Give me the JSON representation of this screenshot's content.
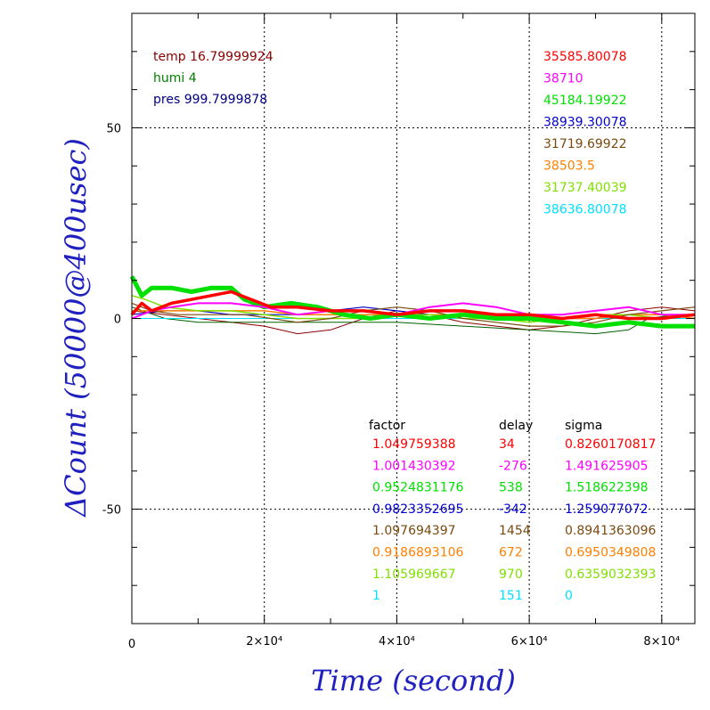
{
  "chart_data": {
    "type": "line",
    "title": "",
    "xlabel": "Time (second)",
    "ylabel": "ΔCount (50000@400usec)",
    "xlim": [
      0,
      85000
    ],
    "ylim": [
      -80,
      80
    ],
    "x_ticks": [
      {
        "value": 0,
        "label": "0"
      },
      {
        "value": 20000,
        "label": "2×10⁴"
      },
      {
        "value": 40000,
        "label": "4×10⁴"
      },
      {
        "value": 60000,
        "label": "6×10⁴"
      },
      {
        "value": 80000,
        "label": "8×10⁴"
      }
    ],
    "y_ticks": [
      {
        "value": 50,
        "label": "50"
      },
      {
        "value": 0,
        "label": "0"
      },
      {
        "value": -50,
        "label": "-50"
      }
    ],
    "grid": true,
    "env_labels": [
      {
        "text": "temp 16.79999924",
        "color": "#8b0000"
      },
      {
        "text": "humi 4",
        "color": "#008000"
      },
      {
        "text": "pres 999.7999878",
        "color": "#000080"
      }
    ],
    "means_header": "",
    "table_headers": {
      "factor": "factor",
      "delay": "delay",
      "sigma": "sigma"
    },
    "series": [
      {
        "mean": "35585.80078",
        "factor": "1.049759388",
        "delay": "34",
        "sigma": "0.8260170817",
        "color": "#ff0000",
        "width": 3.5,
        "points": [
          [
            0,
            1
          ],
          [
            1500,
            4
          ],
          [
            3000,
            2
          ],
          [
            6000,
            4
          ],
          [
            9000,
            5
          ],
          [
            12000,
            6
          ],
          [
            15000,
            7
          ],
          [
            18000,
            5
          ],
          [
            21000,
            3
          ],
          [
            25000,
            3
          ],
          [
            30000,
            2
          ],
          [
            35000,
            2
          ],
          [
            40000,
            1
          ],
          [
            45000,
            2
          ],
          [
            50000,
            2
          ],
          [
            55000,
            1
          ],
          [
            60000,
            1
          ],
          [
            65000,
            0
          ],
          [
            70000,
            1
          ],
          [
            75000,
            0
          ],
          [
            80000,
            0
          ],
          [
            85000,
            1
          ]
        ]
      },
      {
        "mean": "38710",
        "factor": "1.001430392",
        "delay": "-276",
        "sigma": "1.491625905",
        "color": "#ff00ff",
        "width": 2,
        "points": [
          [
            0,
            0
          ],
          [
            3000,
            2
          ],
          [
            6000,
            3
          ],
          [
            10000,
            4
          ],
          [
            15000,
            4
          ],
          [
            20000,
            3
          ],
          [
            25000,
            1
          ],
          [
            30000,
            2
          ],
          [
            35000,
            2
          ],
          [
            40000,
            1
          ],
          [
            45000,
            3
          ],
          [
            50000,
            4
          ],
          [
            55000,
            3
          ],
          [
            60000,
            1
          ],
          [
            65000,
            1
          ],
          [
            70000,
            2
          ],
          [
            75000,
            3
          ],
          [
            80000,
            1
          ],
          [
            85000,
            1
          ]
        ]
      },
      {
        "mean": "45184.19922",
        "factor": "0.9524831176",
        "delay": "538",
        "sigma": "1.518622398",
        "color": "#00e000",
        "width": 5,
        "points": [
          [
            0,
            11
          ],
          [
            1500,
            6
          ],
          [
            3000,
            8
          ],
          [
            6000,
            8
          ],
          [
            9000,
            7
          ],
          [
            12000,
            8
          ],
          [
            15000,
            8
          ],
          [
            17000,
            5
          ],
          [
            20000,
            3
          ],
          [
            24000,
            4
          ],
          [
            28000,
            3
          ],
          [
            32000,
            1
          ],
          [
            36000,
            0
          ],
          [
            40000,
            1
          ],
          [
            45000,
            0
          ],
          [
            50000,
            1
          ],
          [
            55000,
            0
          ],
          [
            60000,
            0
          ],
          [
            65000,
            -1
          ],
          [
            70000,
            -2
          ],
          [
            75000,
            -1
          ],
          [
            80000,
            -2
          ],
          [
            85000,
            -2
          ]
        ]
      },
      {
        "mean": "38939.30078",
        "factor": "0.9823352695",
        "delay": "-342",
        "sigma": "1.259077072",
        "color": "#0000cc",
        "width": 1.2,
        "points": [
          [
            0,
            1
          ],
          [
            5000,
            2
          ],
          [
            10000,
            2
          ],
          [
            15000,
            1
          ],
          [
            20000,
            1
          ],
          [
            25000,
            1
          ],
          [
            30000,
            2
          ],
          [
            35000,
            3
          ],
          [
            40000,
            2
          ],
          [
            45000,
            1
          ],
          [
            50000,
            1
          ],
          [
            55000,
            1
          ],
          [
            60000,
            1
          ],
          [
            65000,
            0
          ],
          [
            70000,
            0
          ],
          [
            75000,
            1
          ],
          [
            80000,
            1
          ],
          [
            85000,
            1
          ]
        ]
      },
      {
        "mean": "31719.69922",
        "factor": "1.097694397",
        "delay": "1454",
        "sigma": "0.8941363096",
        "color": "#7a4a10",
        "width": 1.2,
        "points": [
          [
            0,
            4
          ],
          [
            3000,
            2
          ],
          [
            7000,
            1
          ],
          [
            12000,
            1
          ],
          [
            17000,
            1
          ],
          [
            21000,
            0
          ],
          [
            25000,
            -1
          ],
          [
            30000,
            0
          ],
          [
            35000,
            2
          ],
          [
            40000,
            3
          ],
          [
            45000,
            2
          ],
          [
            50000,
            0
          ],
          [
            55000,
            -1
          ],
          [
            60000,
            -2
          ],
          [
            65000,
            -2
          ],
          [
            70000,
            -1
          ],
          [
            75000,
            1
          ],
          [
            80000,
            2
          ],
          [
            85000,
            3
          ]
        ]
      },
      {
        "mean": "38503.5",
        "factor": "0.9186893106",
        "delay": "672",
        "sigma": "0.6950349808",
        "color": "#ff8000",
        "width": 1.5,
        "points": [
          [
            0,
            2
          ],
          [
            5000,
            2
          ],
          [
            10000,
            2
          ],
          [
            15000,
            2
          ],
          [
            20000,
            2
          ],
          [
            25000,
            1
          ],
          [
            30000,
            1
          ],
          [
            35000,
            1
          ],
          [
            40000,
            1
          ],
          [
            45000,
            1
          ],
          [
            50000,
            1
          ],
          [
            55000,
            1
          ],
          [
            60000,
            0
          ],
          [
            65000,
            0
          ],
          [
            70000,
            0
          ],
          [
            75000,
            1
          ],
          [
            80000,
            1
          ],
          [
            85000,
            0
          ]
        ]
      },
      {
        "mean": "31737.40039",
        "factor": "1.105969667",
        "delay": "970",
        "sigma": "0.6359032393",
        "color": "#80e000",
        "width": 1.5,
        "points": [
          [
            0,
            6
          ],
          [
            2000,
            5
          ],
          [
            5000,
            3
          ],
          [
            10000,
            2
          ],
          [
            15000,
            2
          ],
          [
            20000,
            1
          ],
          [
            25000,
            0
          ],
          [
            30000,
            0
          ],
          [
            35000,
            0
          ],
          [
            40000,
            1
          ],
          [
            45000,
            1
          ],
          [
            50000,
            0
          ],
          [
            55000,
            0
          ],
          [
            60000,
            -1
          ],
          [
            65000,
            0
          ],
          [
            70000,
            1
          ],
          [
            75000,
            1
          ],
          [
            80000,
            0
          ],
          [
            85000,
            1
          ]
        ]
      },
      {
        "mean": "38636.80078",
        "factor": "1",
        "delay": "151",
        "sigma": "0",
        "color": "#00e0ff",
        "width": 1,
        "points": [
          [
            0,
            0
          ],
          [
            85000,
            0
          ]
        ]
      }
    ],
    "env_curves": [
      {
        "color": "#8b0000",
        "points": [
          [
            0,
            2
          ],
          [
            10000,
            0
          ],
          [
            20000,
            -2
          ],
          [
            25000,
            -4
          ],
          [
            30000,
            -3
          ],
          [
            35000,
            0
          ],
          [
            40000,
            2
          ],
          [
            45000,
            1
          ],
          [
            50000,
            -1
          ],
          [
            55000,
            -2
          ],
          [
            60000,
            -3
          ],
          [
            65000,
            -2
          ],
          [
            70000,
            0
          ],
          [
            75000,
            2
          ],
          [
            80000,
            3
          ],
          [
            85000,
            2
          ]
        ]
      },
      {
        "color": "#006000",
        "points": [
          [
            0,
            3
          ],
          [
            5000,
            0
          ],
          [
            10000,
            -1
          ],
          [
            20000,
            -1
          ],
          [
            30000,
            -1
          ],
          [
            40000,
            -1
          ],
          [
            50000,
            -2
          ],
          [
            60000,
            -3
          ],
          [
            70000,
            -4
          ],
          [
            75000,
            -3
          ],
          [
            78000,
            0
          ],
          [
            82000,
            1
          ],
          [
            85000,
            1
          ]
        ]
      }
    ]
  }
}
